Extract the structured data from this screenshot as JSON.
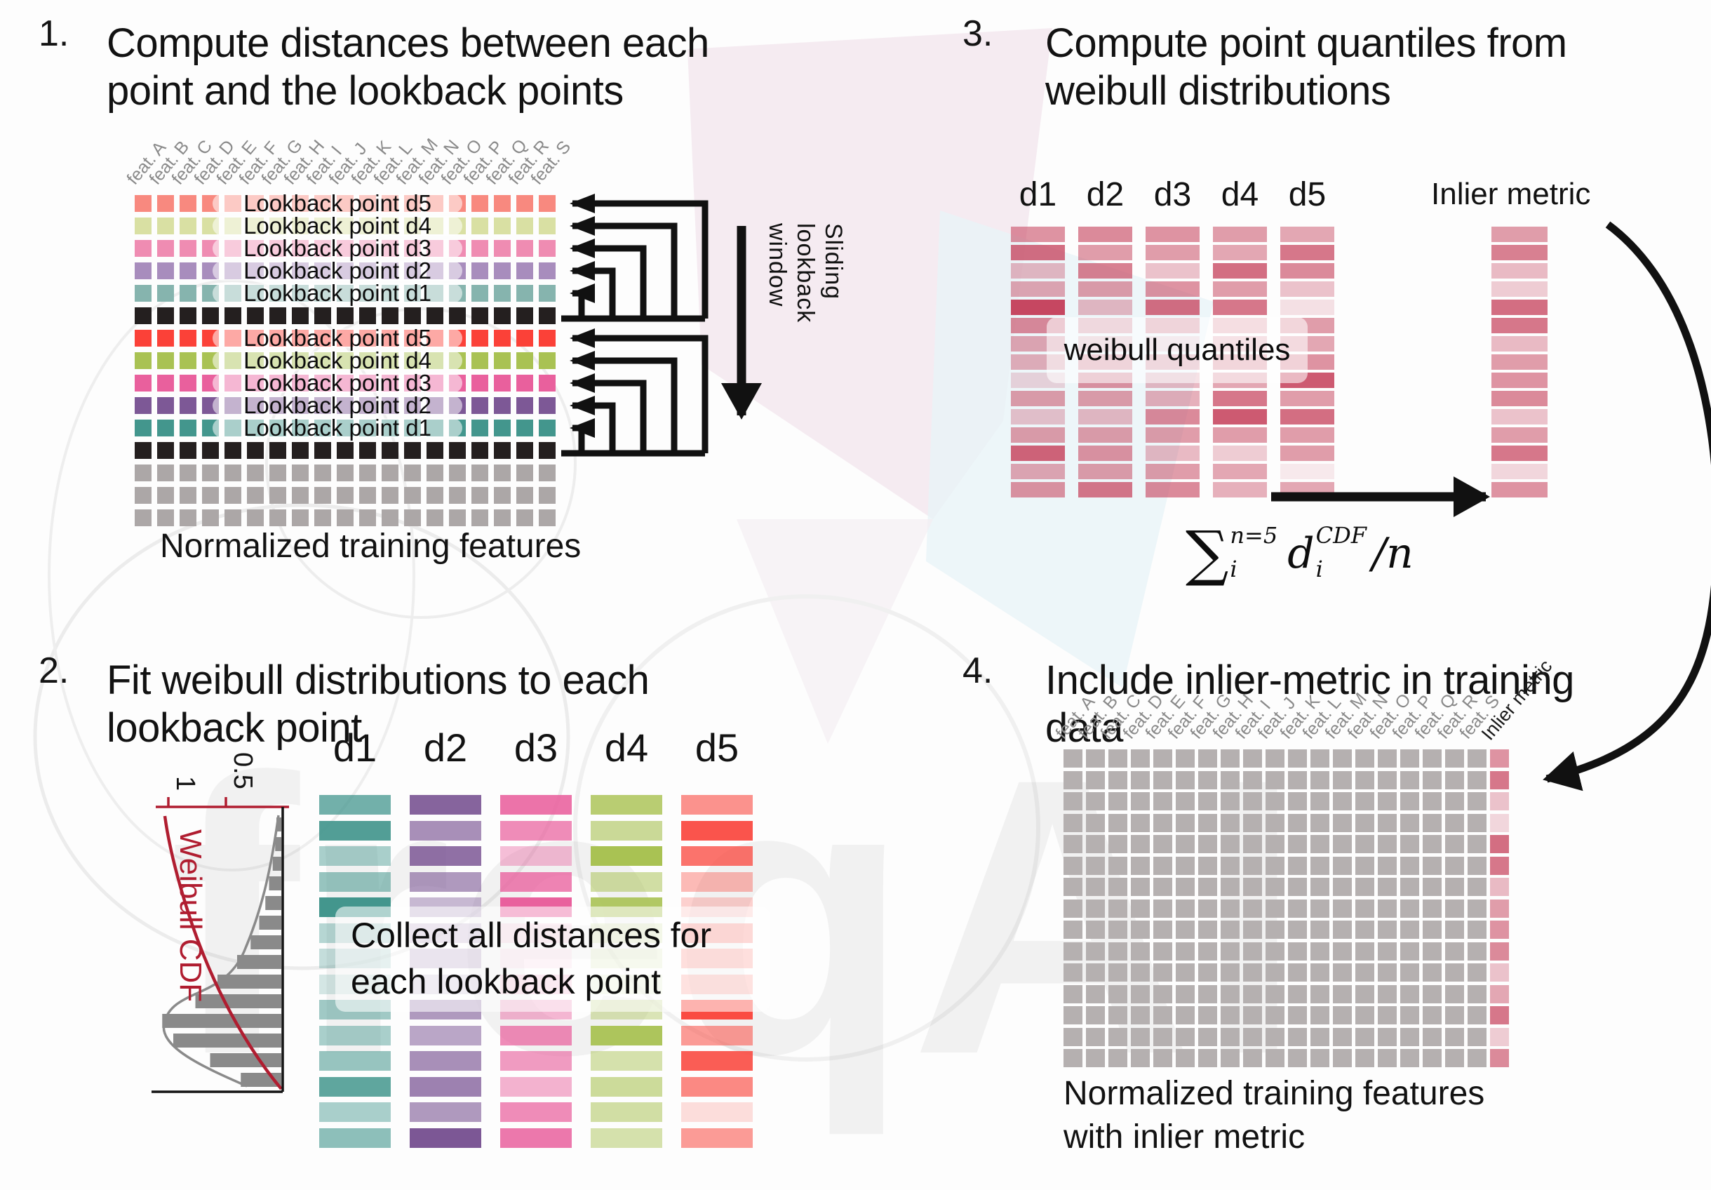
{
  "panel1": {
    "number": "1.",
    "title_line1": "Compute distances between each",
    "title_line2": "point and the lookback points",
    "caption": "Normalized training features",
    "sliding_label": [
      "Sliding",
      "lookback",
      "window"
    ],
    "feature_labels": [
      "feat. A",
      "feat. B",
      "feat. C",
      "feat. D",
      "feat. E",
      "feat. F",
      "feat. G",
      "feat. H",
      "feat. I",
      "feat. J",
      "feat. K",
      "feat. L",
      "feat. M",
      "feat. N",
      "feat. O",
      "feat. P",
      "feat. Q",
      "feat. R",
      "feat. S"
    ],
    "rows": [
      {
        "type": "lookback",
        "color": "#f8897f",
        "label": "Lookback point d5"
      },
      {
        "type": "lookback",
        "color": "#d9e0a3",
        "label": "Lookback point d4"
      },
      {
        "type": "lookback",
        "color": "#ef8cb2",
        "label": "Lookback point d3"
      },
      {
        "type": "lookback",
        "color": "#a88dbd",
        "label": "Lookback point d2"
      },
      {
        "type": "lookback",
        "color": "#86b4ae",
        "label": "Lookback point d1"
      },
      {
        "type": "current",
        "color": "#241f1f"
      },
      {
        "type": "lookback",
        "color": "#fb4138",
        "label": "Lookback point d5"
      },
      {
        "type": "lookback",
        "color": "#a9c253",
        "label": "Lookback point d4"
      },
      {
        "type": "lookback",
        "color": "#e9609d",
        "label": "Lookback point d3"
      },
      {
        "type": "lookback",
        "color": "#7d5896",
        "label": "Lookback point d2"
      },
      {
        "type": "lookback",
        "color": "#43968d",
        "label": "Lookback point d1"
      },
      {
        "type": "current",
        "color": "#241f1f"
      },
      {
        "type": "plain",
        "color": "#aca7a7"
      },
      {
        "type": "plain",
        "color": "#aca7a7"
      },
      {
        "type": "plain",
        "color": "#aca7a7"
      }
    ]
  },
  "panel2": {
    "number": "2.",
    "title_line1": "Fit weibull distributions to each",
    "title_line2": "lookback point",
    "overlay_line1": "Collect all distances for",
    "overlay_line2": "each lookback point",
    "plot": {
      "label": "Weibull CDF",
      "label_color": "#b01d30",
      "tick1": "1",
      "tick2": "0.5",
      "bar_color": "#8a8a8a",
      "bar_lengths": [
        0.04,
        0.05,
        0.07,
        0.1,
        0.13,
        0.18,
        0.25,
        0.36,
        0.52,
        0.7,
        0.97,
        0.88,
        0.58,
        0.33
      ]
    },
    "columns": [
      {
        "label": "d1",
        "color": "#43968d",
        "alphas": [
          0.75,
          0.92,
          0.45,
          0.55,
          1,
          0.38,
          0.3,
          0.22,
          0.5,
          0.45,
          0.55,
          0.85,
          0.45,
          0.6
        ]
      },
      {
        "label": "d2",
        "color": "#7c5795",
        "alphas": [
          0.92,
          0.66,
          0.85,
          0.6,
          0.42,
          0.32,
          0.38,
          0.25,
          0.6,
          0.52,
          0.66,
          0.75,
          0.6,
          1
        ]
      },
      {
        "label": "d3",
        "color": "#e9609d",
        "alphas": [
          0.88,
          0.72,
          0.4,
          0.78,
          1,
          0.22,
          0.15,
          0.3,
          0.45,
          0.72,
          0.62,
          0.48,
          0.72,
          0.85
        ]
      },
      {
        "label": "d4",
        "color": "#a9c253",
        "alphas": [
          0.82,
          0.6,
          1,
          0.52,
          0.9,
          0.3,
          0.22,
          0.18,
          0.42,
          0.95,
          0.48,
          0.58,
          0.52,
          0.48
        ]
      },
      {
        "label": "d5",
        "color": "#fa4b42",
        "alphas": [
          0.6,
          0.95,
          0.78,
          0.38,
          0.25,
          0.5,
          0.42,
          0.38,
          1,
          0.55,
          0.9,
          0.65,
          0.18,
          0.55
        ]
      }
    ]
  },
  "panel3": {
    "number": "3.",
    "title_line1": "Compute point quantiles from",
    "title_line2": "weibull distributions",
    "overlay_label": "weibull quantiles",
    "inlier_label": "Inlier metric",
    "base_color": "#c43d58",
    "columns": [
      {
        "label": "d1",
        "alphas": [
          0.55,
          0.75,
          0.35,
          0.45,
          0.95,
          0.6,
          0.45,
          0.4,
          0.2,
          0.5,
          0.3,
          0.5,
          0.8,
          0.45,
          0.55
        ]
      },
      {
        "label": "d2",
        "alphas": [
          0.6,
          0.5,
          0.65,
          0.5,
          0.35,
          0.45,
          0.3,
          0.5,
          0.55,
          0.5,
          0.35,
          0.5,
          0.55,
          0.5,
          0.7
        ]
      },
      {
        "label": "d3",
        "alphas": [
          0.55,
          0.5,
          0.3,
          0.55,
          0.75,
          0.5,
          0.2,
          0.45,
          0.35,
          0.4,
          0.6,
          0.5,
          0.35,
          0.5,
          0.6
        ]
      },
      {
        "label": "d4",
        "alphas": [
          0.5,
          0.45,
          0.75,
          0.5,
          0.7,
          0.4,
          0.35,
          0.5,
          0.45,
          0.7,
          0.85,
          0.5,
          0.25,
          0.45,
          0.4
        ]
      },
      {
        "label": "d5",
        "alphas": [
          0.45,
          0.7,
          0.6,
          0.3,
          0.15,
          0.5,
          0.45,
          0.55,
          0.85,
          0.5,
          0.75,
          0.5,
          0.5,
          0.1,
          0.45
        ]
      }
    ],
    "inlier_alphas": [
      0.5,
      0.65,
      0.35,
      0.25,
      0.75,
      0.7,
      0.35,
      0.5,
      0.55,
      0.6,
      0.3,
      0.5,
      0.7,
      0.2,
      0.55
    ],
    "formula": {
      "sum_symbol": "∑",
      "sum_sup": "n=5",
      "sum_sub": "i",
      "var_name": "d",
      "var_sup": "CDF",
      "var_sub": "i",
      "divisor": "/n"
    }
  },
  "panel4": {
    "number": "4.",
    "title_line1": "Include inlier-metric in training",
    "title_line2": "data",
    "caption_line1": "Normalized training features",
    "caption_line2": "with inlier metric",
    "feature_labels": [
      "feat. A",
      "feat. B",
      "feat. C",
      "feat. D",
      "feat. E",
      "feat. F",
      "feat. G",
      "feat. H",
      "feat. I",
      "feat. J",
      "feat. K",
      "feat. L",
      "feat. M",
      "feat. N",
      "feat. O",
      "feat. P",
      "feat. Q",
      "feat. R",
      "feat. S"
    ],
    "inlier_col_label": "Inlier metric",
    "grid_gray": "#b5b0b0",
    "inlier_color": "#c43d58",
    "inlier_alphas": [
      0.55,
      0.7,
      0.3,
      0.2,
      0.75,
      0.7,
      0.35,
      0.5,
      0.55,
      0.6,
      0.3,
      0.45,
      0.7,
      0.25,
      0.6
    ]
  },
  "watermark": {
    "text": "freqAI"
  }
}
